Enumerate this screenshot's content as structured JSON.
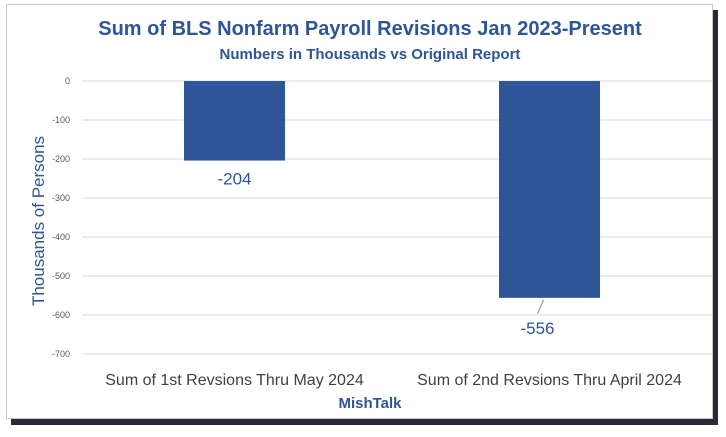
{
  "chart_data": {
    "type": "bar",
    "title": "Sum of BLS Nonfarm Payroll Revisions Jan 2023-Present",
    "subtitle": "Numbers in Thousands vs Original Report",
    "ylabel": "Thousands of Persons",
    "xlabel": "MishTalk",
    "categories": [
      "Sum of 1st Revsions Thru May 2024",
      "Sum of 2nd Revsions Thru April 2024"
    ],
    "values": [
      -204,
      -556
    ],
    "data_labels": [
      "-204",
      "-556"
    ],
    "ylim": [
      -700,
      0
    ],
    "yticks": [
      0,
      -100,
      -200,
      -300,
      -400,
      -500,
      -600,
      -700
    ],
    "grid": true,
    "legend": "none",
    "bar_color": "#2e5597"
  }
}
